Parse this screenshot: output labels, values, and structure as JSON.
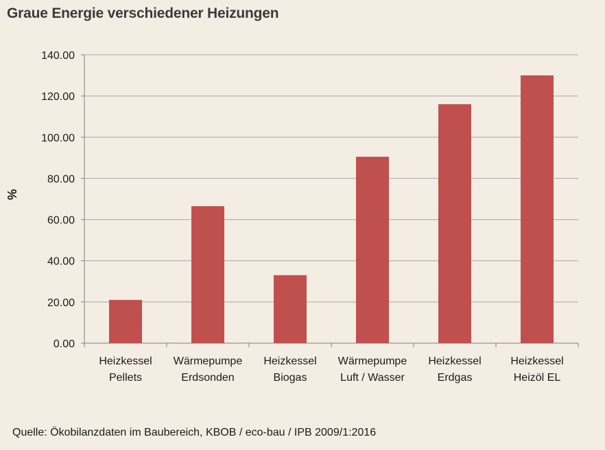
{
  "chart_data": {
    "type": "bar",
    "title": "Graue Energie verschiedener Heizungen",
    "ylabel": "%",
    "xlabel": "",
    "ylim": [
      0,
      140
    ],
    "yticks": [
      "0.00",
      "20.00",
      "40.00",
      "60.00",
      "80.00",
      "100.00",
      "120.00",
      "140.00"
    ],
    "categories": [
      [
        "Heizkessel",
        "Pellets"
      ],
      [
        "Wärmepumpe",
        "Erdsonden"
      ],
      [
        "Heizkessel",
        "Biogas"
      ],
      [
        "Wärmepumpe",
        "Luft / Wasser"
      ],
      [
        "Heizkessel",
        "Erdgas"
      ],
      [
        "Heizkessel",
        "Heizöl EL"
      ]
    ],
    "values": [
      21,
      66.5,
      33,
      90.5,
      116,
      130
    ],
    "bar_color": "#c0504d",
    "grid": true
  },
  "source": "Quelle: Ökobilanzdaten im Baubereich, KBOB / eco-bau / IPB  2009/1:2016"
}
